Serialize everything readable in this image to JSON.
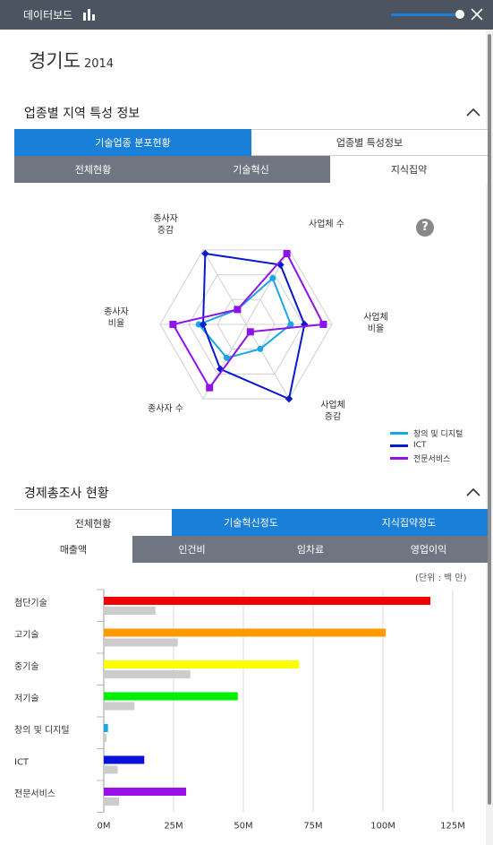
{
  "topbar": {
    "title": "데이터보드",
    "chart_icon": "bar-chart-icon",
    "close_icon": "close-icon",
    "slider_level": 0.9
  },
  "region": {
    "name": "경기도",
    "year": "2014"
  },
  "section1": {
    "title": "업종별 지역 특성 정보",
    "tabs_main": [
      "기술업종 분포현황",
      "업종별 특성정보"
    ],
    "tabs_sub": [
      "전체현황",
      "기술혁신",
      "지식집약"
    ],
    "help_label": "?"
  },
  "radar": {
    "axes": [
      "사업체 수",
      "사업체\n비율",
      "사업체\n증감",
      "종사자 수",
      "종사자\n비율",
      "종사자\n증감"
    ],
    "legend": [
      "창의 및 디지털",
      "ICT",
      "전문서비스"
    ],
    "colors": [
      "#19a6e8",
      "#0a19c9",
      "#8f12e8"
    ],
    "series": [
      [
        0.62,
        0.52,
        0.33,
        0.45,
        0.55,
        0.2
      ],
      [
        0.8,
        0.68,
        1.0,
        0.6,
        0.5,
        0.95
      ],
      [
        0.95,
        0.9,
        0.1,
        0.85,
        0.85,
        0.2
      ]
    ]
  },
  "section2": {
    "title": "경제총조사 현황",
    "tabs_main": [
      "전체현황",
      "기술혁신정도",
      "지식집약정도"
    ],
    "tabs_sub": [
      "매출액",
      "인건비",
      "임차료",
      "영업이익"
    ],
    "unit": "(단위 : 백 만)"
  },
  "chart_data": {
    "type": "bar",
    "orientation": "horizontal",
    "categories": [
      "첨단기술",
      "고기술",
      "중기술",
      "저기술",
      "창의 및 디지털",
      "ICT",
      "전문서비스"
    ],
    "series": [
      {
        "values": [
          117,
          101,
          70,
          48,
          1.5,
          14.5,
          29.5
        ],
        "colors": [
          "#f00000",
          "#ff9a00",
          "#ffff00",
          "#00ee00",
          "#17a8e6",
          "#0a12d6",
          "#9a0eea"
        ]
      },
      {
        "values": [
          18.5,
          26.5,
          31,
          11,
          1,
          5,
          5.5
        ],
        "colors": [
          "#cccccc"
        ]
      }
    ],
    "xlim": [
      0,
      125
    ],
    "ticks": [
      "0M",
      "25M",
      "50M",
      "75M",
      "100M",
      "125M"
    ],
    "grid": true
  }
}
